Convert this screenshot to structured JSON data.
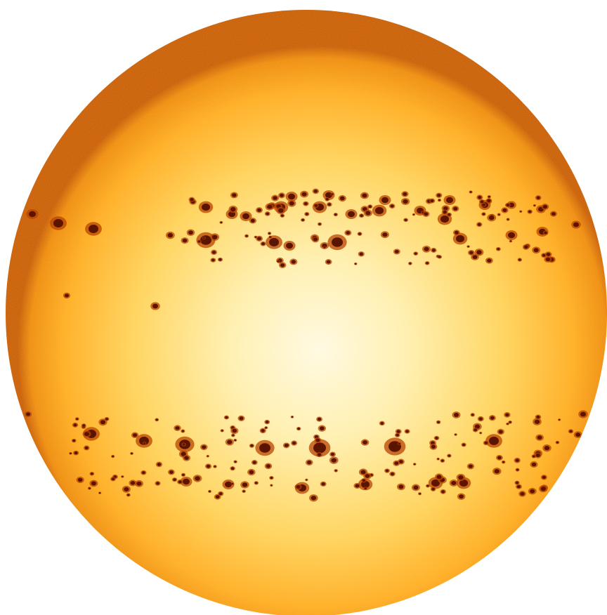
{
  "colors": {
    "background": "#ffffff",
    "disk_center": "#fffbe6",
    "disk_mid": "#ffe07a",
    "disk_outer": "#ffb020",
    "disk_limb": "#e07800",
    "limb_edge": "#c85a00",
    "spot_umbra": "#5a1400",
    "spot_penumbra": "#b84400",
    "facula": "#ff9a30"
  },
  "icons": {
    "sun_disk": "sun-disk-icon"
  }
}
